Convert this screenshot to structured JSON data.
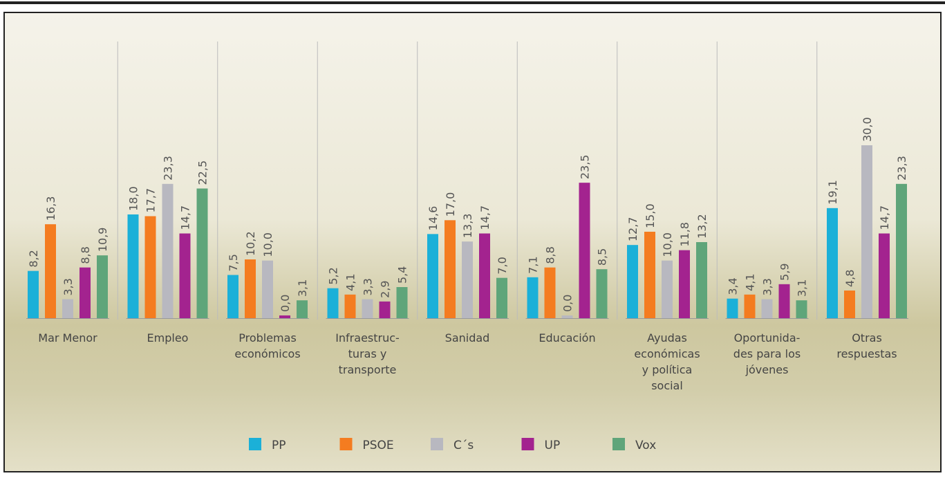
{
  "chart_data": {
    "type": "bar",
    "categories": [
      "Mar Menor",
      "Empleo",
      "Problemas\neconómicos",
      "Infraestruc-\nturas y\ntransporte",
      "Sanidad",
      "Educación",
      "Ayudas\neconómicas\ny política\nsocial",
      "Oportunida-\ndes para los\njóvenes",
      "Otras\nrespuestas"
    ],
    "series": [
      {
        "name": "PP",
        "color": "#1bb0d8",
        "values": [
          8.2,
          18.0,
          7.5,
          5.2,
          14.6,
          7.1,
          12.7,
          3.4,
          19.1
        ],
        "value_labels": [
          "8,2",
          "18,0",
          "7,5",
          "5,2",
          "14,6",
          "7,1",
          "12,7",
          "3,4",
          "19,1"
        ]
      },
      {
        "name": "PSOE",
        "color": "#f47c20",
        "values": [
          16.3,
          17.7,
          10.2,
          4.1,
          17.0,
          8.8,
          15.0,
          4.1,
          4.8
        ],
        "value_labels": [
          "16,3",
          "17,7",
          "10,2",
          "4,1",
          "17,0",
          "8,8",
          "15,0",
          "4,1",
          "4,8"
        ]
      },
      {
        "name": "C´s",
        "color": "#b8b8c0",
        "values": [
          3.3,
          23.3,
          10.0,
          3.3,
          13.3,
          0.0,
          10.0,
          3.3,
          30.0
        ],
        "value_labels": [
          "3,3",
          "23,3",
          "10,0",
          "3,3",
          "13,3",
          "0,0",
          "10,0",
          "3,3",
          "30,0"
        ]
      },
      {
        "name": "UP",
        "color": "#a3238f",
        "values": [
          8.8,
          14.7,
          0.0,
          2.9,
          14.7,
          23.5,
          11.8,
          5.9,
          14.7
        ],
        "value_labels": [
          "8,8",
          "14,7",
          "0,0",
          "2,9",
          "14,7",
          "23,5",
          "11,8",
          "5,9",
          "14,7"
        ]
      },
      {
        "name": "Vox",
        "color": "#5fa57a",
        "values": [
          10.9,
          22.5,
          3.1,
          5.4,
          7.0,
          8.5,
          13.2,
          3.1,
          23.3
        ],
        "value_labels": [
          "10,9",
          "22,5",
          "3,1",
          "5,4",
          "7,0",
          "8,5",
          "13,2",
          "3,1",
          "23,3"
        ]
      }
    ],
    "ylim": [
      0,
      30
    ],
    "legend": "bottom"
  }
}
